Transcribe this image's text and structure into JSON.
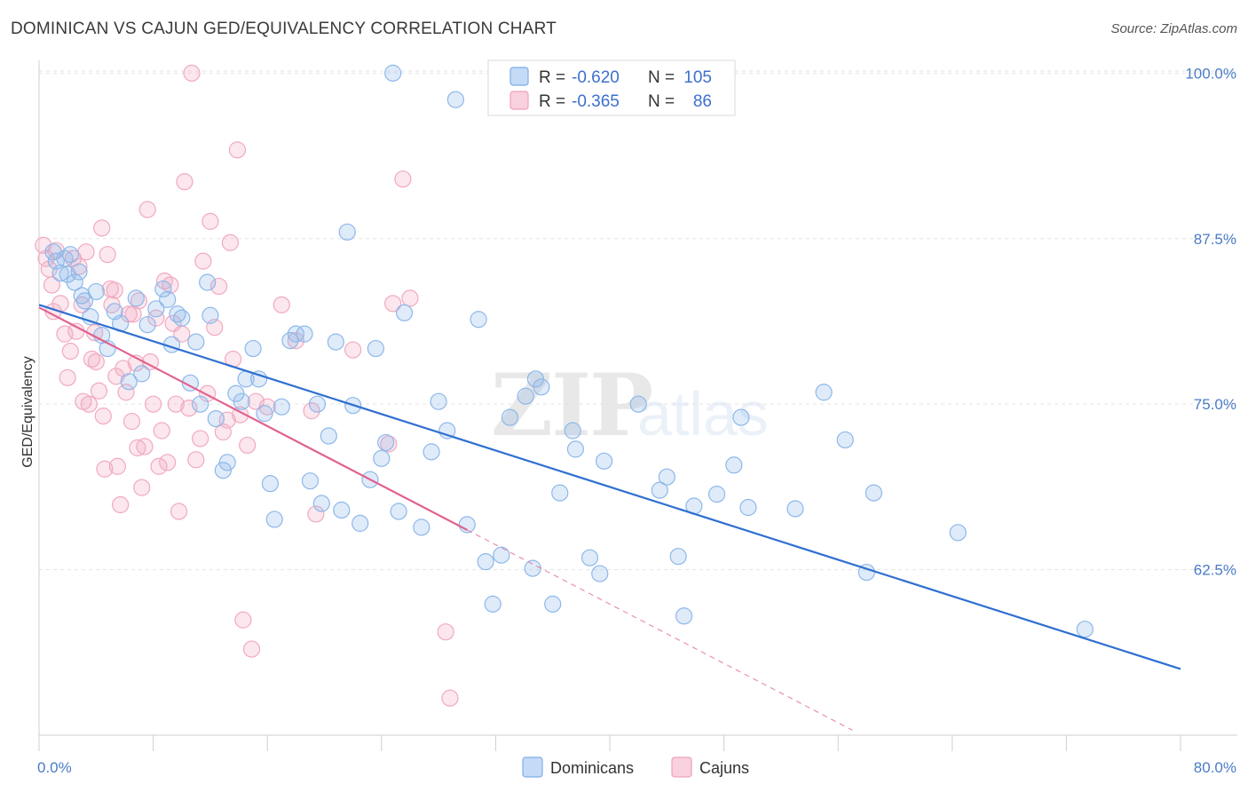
{
  "header": {
    "title": "DOMINICAN VS CAJUN GED/EQUIVALENCY CORRELATION CHART",
    "source": "Source: ZipAtlas.com"
  },
  "watermark": {
    "zip": "ZIP",
    "atlas": "atlas"
  },
  "legend_box": {
    "rows": [
      {
        "r_label": "R = ",
        "r_value": "-0.620",
        "n_label": "N = ",
        "n_value": "105",
        "color": "#7eaee8"
      },
      {
        "r_label": "R = ",
        "r_value": "-0.365",
        "n_label": "N = ",
        "n_value": "86",
        "color": "#f0a0bb"
      }
    ]
  },
  "bottom_legend": [
    {
      "label": "Dominicans",
      "color": "#7eaee8"
    },
    {
      "label": "Cajuns",
      "color": "#f0a0bb"
    }
  ],
  "colors": {
    "blue_point": "#8db8ea",
    "blue_line": "#2e6fd1",
    "pink_point": "#f2a9c0",
    "pink_line": "#e0628f"
  },
  "chart_data": {
    "type": "scatter",
    "title": "DOMINICAN VS CAJUN GED/EQUIVALENCY CORRELATION CHART",
    "xlabel": "",
    "ylabel": "GED/Equivalency",
    "xlim": [
      0,
      80
    ],
    "ylim": [
      50,
      101.5
    ],
    "x_tick_labels": [
      "0.0%",
      "80.0%"
    ],
    "y_ticks": [
      62.5,
      75.0,
      87.5,
      100.0
    ],
    "y_tick_labels": [
      "62.5%",
      "75.0%",
      "87.5%",
      "100.0%"
    ],
    "grid": true,
    "legend_position": "top-center",
    "series": [
      {
        "name": "Dominicans",
        "r": -0.62,
        "n": 105,
        "trend": {
          "x": [
            0,
            80
          ],
          "y": [
            82.5,
            55.0
          ],
          "dashed_x_end": null
        },
        "points": [
          [
            1.0,
            86.5
          ],
          [
            1.2,
            85.8
          ],
          [
            1.5,
            84.9
          ],
          [
            1.8,
            86.0
          ],
          [
            2.0,
            84.8
          ],
          [
            2.2,
            86.3
          ],
          [
            2.5,
            84.2
          ],
          [
            2.8,
            85.0
          ],
          [
            3.0,
            83.2
          ],
          [
            3.2,
            82.8
          ],
          [
            3.6,
            81.6
          ],
          [
            4.0,
            83.5
          ],
          [
            4.4,
            80.2
          ],
          [
            4.8,
            79.2
          ],
          [
            5.3,
            82.0
          ],
          [
            5.7,
            81.1
          ],
          [
            6.3,
            76.7
          ],
          [
            6.8,
            83.0
          ],
          [
            7.2,
            77.3
          ],
          [
            7.6,
            81.0
          ],
          [
            8.2,
            82.2
          ],
          [
            8.7,
            83.7
          ],
          [
            9.0,
            82.9
          ],
          [
            9.3,
            79.5
          ],
          [
            9.7,
            81.8
          ],
          [
            10.0,
            81.5
          ],
          [
            10.6,
            76.6
          ],
          [
            11.0,
            79.7
          ],
          [
            11.3,
            75.0
          ],
          [
            11.8,
            84.2
          ],
          [
            12.0,
            81.7
          ],
          [
            12.4,
            73.9
          ],
          [
            12.9,
            70.0
          ],
          [
            13.2,
            70.6
          ],
          [
            13.8,
            75.8
          ],
          [
            14.2,
            75.2
          ],
          [
            14.5,
            76.9
          ],
          [
            15.0,
            79.2
          ],
          [
            15.4,
            76.9
          ],
          [
            15.8,
            74.3
          ],
          [
            16.2,
            69.0
          ],
          [
            16.5,
            66.3
          ],
          [
            17.0,
            74.8
          ],
          [
            17.6,
            79.8
          ],
          [
            18.0,
            80.3
          ],
          [
            18.6,
            80.3
          ],
          [
            19.0,
            69.2
          ],
          [
            19.5,
            75.0
          ],
          [
            19.8,
            67.5
          ],
          [
            20.3,
            72.6
          ],
          [
            20.8,
            79.7
          ],
          [
            21.2,
            67.0
          ],
          [
            21.6,
            88.0
          ],
          [
            22.0,
            74.9
          ],
          [
            22.5,
            66.0
          ],
          [
            23.2,
            69.3
          ],
          [
            23.6,
            79.2
          ],
          [
            24.0,
            70.9
          ],
          [
            24.3,
            72.1
          ],
          [
            24.8,
            100.0
          ],
          [
            25.2,
            66.9
          ],
          [
            25.6,
            81.9
          ],
          [
            26.8,
            65.7
          ],
          [
            27.5,
            71.4
          ],
          [
            28.0,
            75.2
          ],
          [
            28.6,
            73.0
          ],
          [
            29.2,
            98.0
          ],
          [
            30.0,
            65.9
          ],
          [
            30.8,
            81.4
          ],
          [
            31.3,
            63.1
          ],
          [
            31.8,
            59.9
          ],
          [
            32.4,
            63.6
          ],
          [
            33.0,
            74.0
          ],
          [
            34.1,
            75.6
          ],
          [
            34.6,
            62.6
          ],
          [
            34.8,
            76.9
          ],
          [
            35.2,
            76.3
          ],
          [
            36.0,
            59.9
          ],
          [
            36.5,
            68.3
          ],
          [
            37.4,
            73.0
          ],
          [
            37.6,
            71.6
          ],
          [
            38.6,
            63.4
          ],
          [
            39.3,
            62.2
          ],
          [
            39.6,
            70.7
          ],
          [
            42.0,
            75.0
          ],
          [
            43.5,
            68.5
          ],
          [
            44.0,
            69.5
          ],
          [
            44.8,
            63.5
          ],
          [
            45.2,
            59.0
          ],
          [
            45.9,
            67.3
          ],
          [
            47.5,
            68.2
          ],
          [
            48.7,
            70.4
          ],
          [
            49.2,
            74.0
          ],
          [
            49.7,
            67.2
          ],
          [
            53.0,
            67.1
          ],
          [
            55.0,
            75.9
          ],
          [
            56.5,
            72.3
          ],
          [
            58.0,
            62.3
          ],
          [
            58.5,
            68.3
          ],
          [
            64.4,
            65.3
          ],
          [
            73.3,
            58.0
          ]
        ]
      },
      {
        "name": "Cajuns",
        "r": -0.365,
        "n": 86,
        "trend": {
          "x": [
            0,
            30
          ],
          "y": [
            82.3,
            65.5
          ],
          "dashed_x_end": 57
        },
        "points": [
          [
            0.3,
            87.0
          ],
          [
            0.5,
            86.0
          ],
          [
            0.7,
            85.2
          ],
          [
            0.9,
            84.0
          ],
          [
            1.0,
            82.0
          ],
          [
            1.2,
            86.6
          ],
          [
            1.5,
            82.6
          ],
          [
            1.8,
            80.3
          ],
          [
            2.0,
            77.0
          ],
          [
            2.2,
            79.0
          ],
          [
            2.4,
            86.0
          ],
          [
            2.6,
            80.5
          ],
          [
            2.8,
            85.4
          ],
          [
            3.0,
            82.5
          ],
          [
            3.1,
            75.2
          ],
          [
            3.3,
            86.5
          ],
          [
            3.5,
            75.0
          ],
          [
            3.7,
            78.4
          ],
          [
            3.9,
            80.4
          ],
          [
            4.0,
            78.2
          ],
          [
            4.2,
            76.0
          ],
          [
            4.4,
            88.3
          ],
          [
            4.5,
            74.1
          ],
          [
            4.6,
            70.1
          ],
          [
            4.8,
            86.3
          ],
          [
            5.0,
            83.7
          ],
          [
            5.1,
            82.5
          ],
          [
            5.3,
            83.6
          ],
          [
            5.4,
            77.1
          ],
          [
            5.5,
            70.3
          ],
          [
            5.7,
            67.4
          ],
          [
            5.9,
            77.7
          ],
          [
            6.1,
            75.9
          ],
          [
            6.3,
            81.8
          ],
          [
            6.5,
            73.7
          ],
          [
            6.6,
            81.8
          ],
          [
            6.8,
            78.1
          ],
          [
            6.9,
            71.7
          ],
          [
            7.0,
            82.8
          ],
          [
            7.2,
            68.7
          ],
          [
            7.4,
            71.8
          ],
          [
            7.6,
            89.7
          ],
          [
            7.8,
            78.2
          ],
          [
            8.0,
            75.0
          ],
          [
            8.2,
            81.5
          ],
          [
            8.4,
            70.3
          ],
          [
            8.6,
            73.0
          ],
          [
            8.8,
            84.3
          ],
          [
            9.0,
            70.6
          ],
          [
            9.2,
            84.0
          ],
          [
            9.4,
            81.1
          ],
          [
            9.6,
            75.0
          ],
          [
            9.8,
            66.9
          ],
          [
            10.0,
            80.3
          ],
          [
            10.2,
            91.8
          ],
          [
            10.5,
            74.7
          ],
          [
            10.7,
            100.0
          ],
          [
            11.0,
            70.8
          ],
          [
            11.3,
            72.4
          ],
          [
            11.5,
            85.8
          ],
          [
            11.8,
            75.8
          ],
          [
            12.0,
            88.8
          ],
          [
            12.3,
            80.8
          ],
          [
            12.6,
            83.9
          ],
          [
            12.9,
            72.9
          ],
          [
            13.2,
            73.8
          ],
          [
            13.4,
            87.2
          ],
          [
            13.6,
            78.4
          ],
          [
            13.9,
            94.2
          ],
          [
            14.1,
            74.2
          ],
          [
            14.3,
            58.7
          ],
          [
            14.6,
            71.9
          ],
          [
            14.9,
            56.5
          ],
          [
            15.2,
            75.2
          ],
          [
            16.0,
            74.8
          ],
          [
            17.0,
            82.5
          ],
          [
            18.0,
            79.8
          ],
          [
            19.1,
            74.5
          ],
          [
            19.4,
            66.7
          ],
          [
            22.0,
            79.1
          ],
          [
            24.5,
            72.0
          ],
          [
            24.8,
            82.6
          ],
          [
            25.5,
            92.0
          ],
          [
            26.0,
            83.0
          ],
          [
            28.5,
            57.8
          ],
          [
            28.8,
            52.8
          ]
        ]
      }
    ]
  }
}
